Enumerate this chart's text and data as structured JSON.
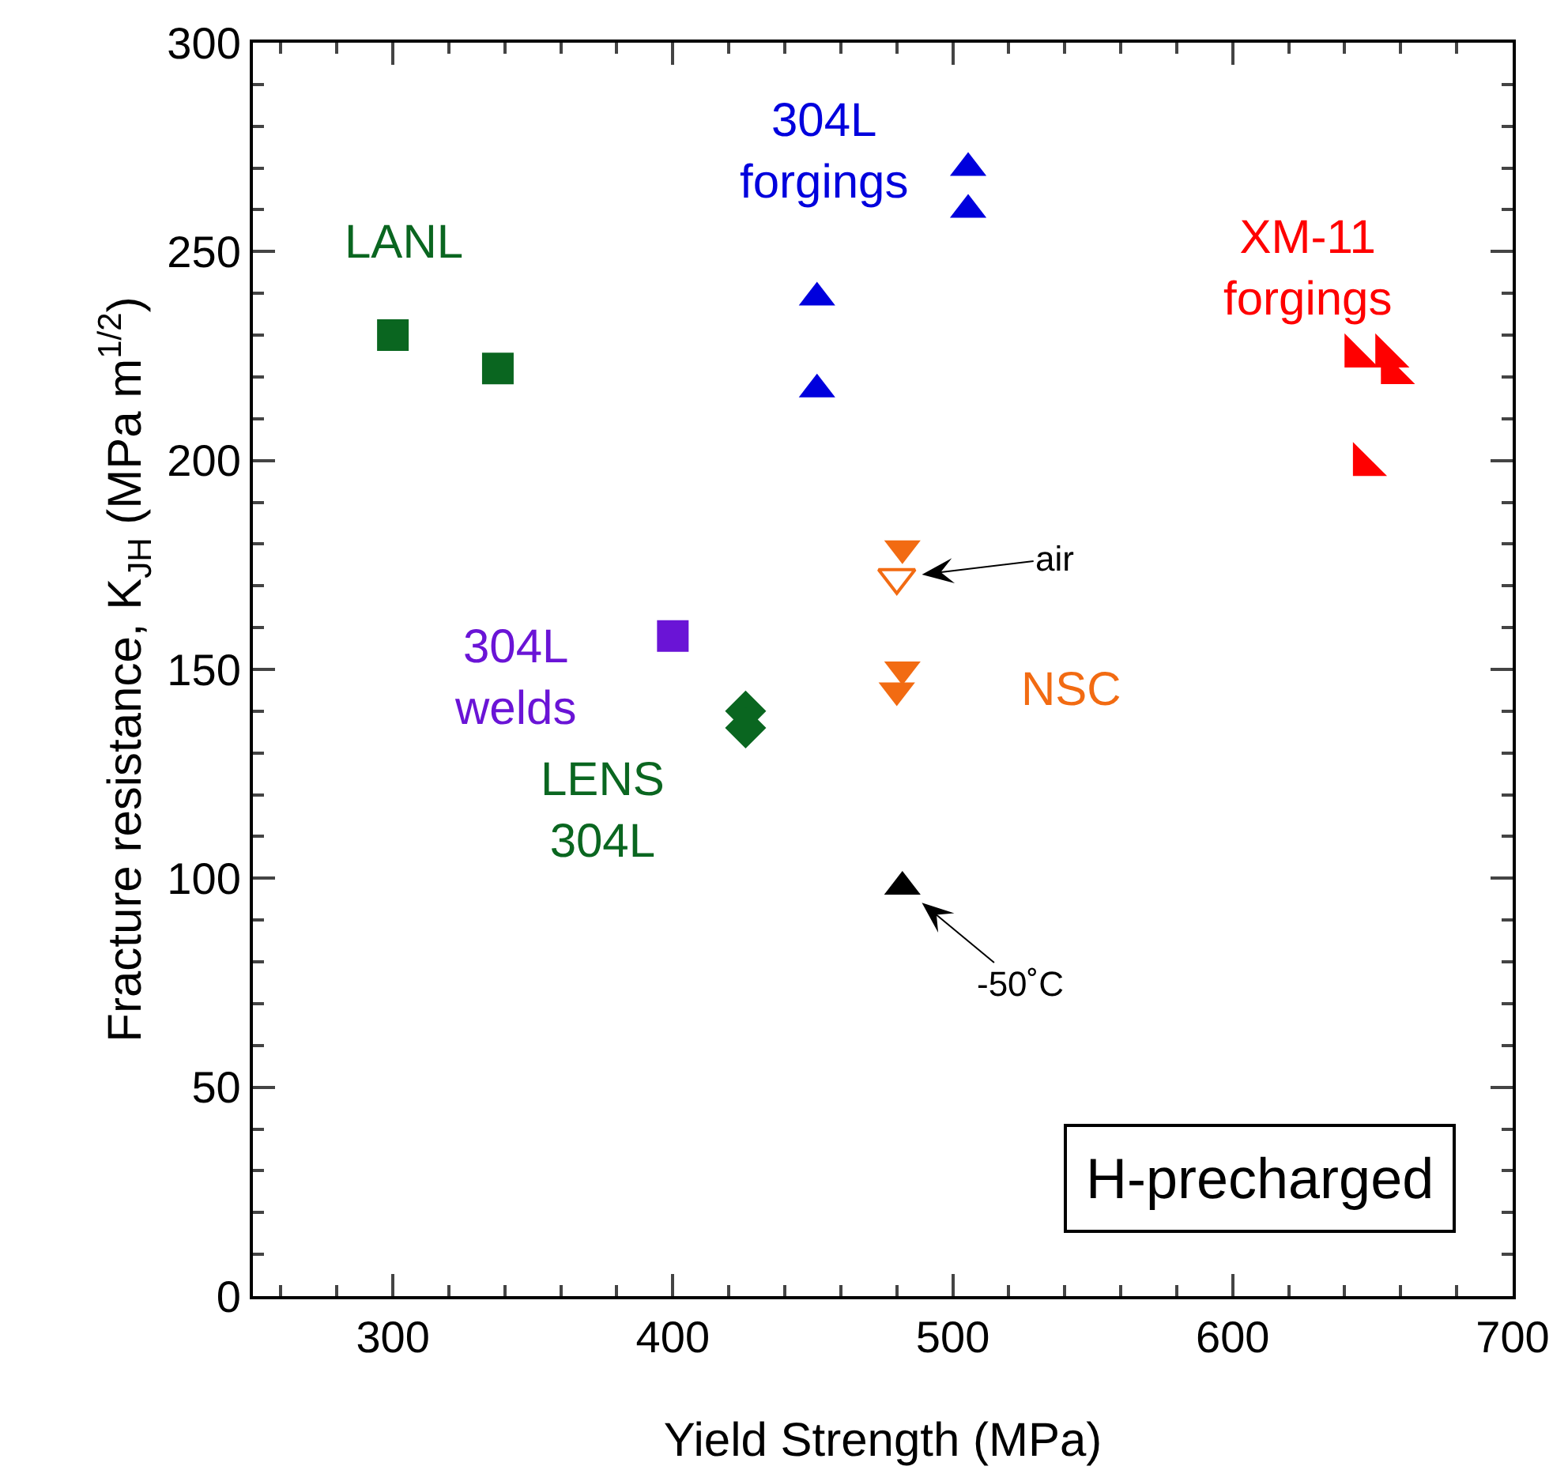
{
  "chart_data": {
    "type": "scatter",
    "xlabel": "Yield Strength (MPa)",
    "ylabel": "Fracture resistance, K$_{JH}$ (MPa m$^{1/2}$)",
    "xlim": [
      250,
      700
    ],
    "xticks": [
      300,
      400,
      500,
      600,
      700
    ],
    "ylim": [
      0,
      300
    ],
    "yticks": [
      0,
      50,
      100,
      150,
      200,
      250,
      300
    ],
    "grid": false,
    "legend": false,
    "series": [
      {
        "name": "LANL",
        "color": "#0a6620",
        "marker": "square",
        "x": [
          300,
          337.5
        ],
        "values": [
          230,
          222
        ]
      },
      {
        "name": "304L forgings",
        "color": "#0000dd",
        "marker": "triangle-up",
        "x": [
          451.5,
          451.5,
          505.5,
          505.5
        ],
        "values": [
          239,
          217,
          270,
          260
        ]
      },
      {
        "name": "XM-11 forgings",
        "color": "#ff0000",
        "marker": "triangle-sw",
        "x": [
          644,
          655,
          657,
          647
        ],
        "values": [
          225,
          225,
          221,
          199
        ]
      },
      {
        "name": "304L welds",
        "color": "#6a14d6",
        "marker": "square",
        "x": [
          400
        ],
        "values": [
          158
        ]
      },
      {
        "name": "LENS 304L",
        "color": "#0a6620",
        "marker": "diamond",
        "x": [
          426,
          426
        ],
        "values": [
          140,
          136
        ]
      },
      {
        "name": "NSC",
        "color": "#f26b12",
        "marker": "triangle-down",
        "x": [
          482,
          482,
          480
        ],
        "values": [
          179,
          150,
          145
        ]
      },
      {
        "color": "#f26b12",
        "marker": "triangle-down-open",
        "x": [
          480
        ],
        "values": [
          172
        ]
      },
      {
        "color": "#000000",
        "marker": "triangle-up",
        "x": [
          482
        ],
        "values": [
          98
        ]
      }
    ],
    "annotations": [
      {
        "text": "air",
        "x": 480,
        "y": 172
      },
      {
        "text": "-50˚C",
        "x": 482,
        "y": 98
      },
      "H-precharged"
    ]
  }
}
